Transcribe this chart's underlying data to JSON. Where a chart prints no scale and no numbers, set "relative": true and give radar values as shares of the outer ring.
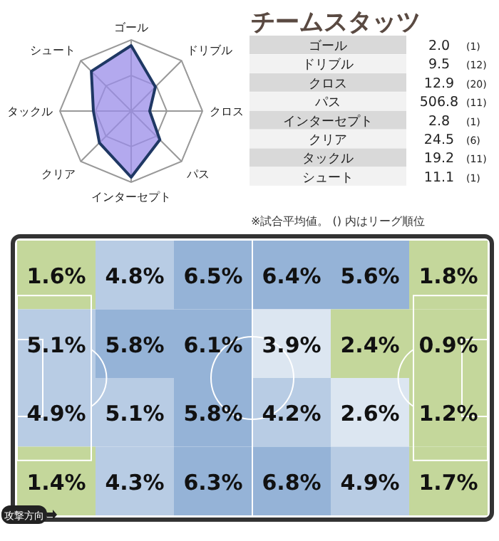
{
  "chart_data": [
    {
      "type": "radar",
      "relative": true,
      "categories": [
        "ゴール",
        "ドリブル",
        "クロス",
        "パス",
        "インターセプト",
        "クリア",
        "タックル",
        "シュート"
      ],
      "series": [
        {
          "color": "#9a8ce8",
          "values": [
            0.92,
            0.48,
            0.26,
            0.57,
            0.93,
            0.63,
            0.53,
            0.79
          ]
        }
      ]
    },
    {
      "type": "other",
      "title": "チームスタッツ",
      "categories": [
        "ゴール",
        "ドリブル",
        "クロス",
        "パス",
        "インターセプト",
        "クリア",
        "タックル",
        "シュート"
      ],
      "value_labels": [
        "2.0",
        "9.5",
        "12.9",
        "506.8",
        "2.8",
        "24.5",
        "19.2",
        "11.1"
      ],
      "y2_categories": [
        "(1)",
        "(12)",
        "(20)",
        "(11)",
        "(1)",
        "(6)",
        "(11)",
        "(1)"
      ],
      "annotations": [
        "※試合平均値。 () 内はリーグ順位"
      ]
    },
    {
      "type": "heatmap",
      "categories": [
        null,
        null,
        null,
        null,
        null,
        null
      ],
      "y_categories": [
        null,
        null,
        null,
        null
      ],
      "cells": [
        [
          1.6,
          4.8,
          6.5,
          6.4,
          5.6,
          1.8
        ],
        [
          5.1,
          5.8,
          6.1,
          3.9,
          2.4,
          0.9
        ],
        [
          4.9,
          5.1,
          5.8,
          4.2,
          2.6,
          1.2
        ],
        [
          1.4,
          4.3,
          6.3,
          6.8,
          4.9,
          1.7
        ]
      ],
      "cell_labels": [
        [
          "1.6%",
          "4.8%",
          "6.5%",
          "6.4%",
          "5.6%",
          "1.8%"
        ],
        [
          "5.1%",
          "5.8%",
          "6.1%",
          "3.9%",
          "2.4%",
          "0.9%"
        ],
        [
          "4.9%",
          "5.1%",
          "5.8%",
          "4.2%",
          "2.6%",
          "1.2%"
        ],
        [
          "1.4%",
          "4.3%",
          "6.3%",
          "6.8%",
          "4.9%",
          "1.7%"
        ]
      ],
      "colors": [
        "#c4d79b",
        "#dce6f1",
        "#b8cce4",
        "#95b3d7"
      ],
      "annotations": [
        "攻撃方向"
      ]
    }
  ]
}
